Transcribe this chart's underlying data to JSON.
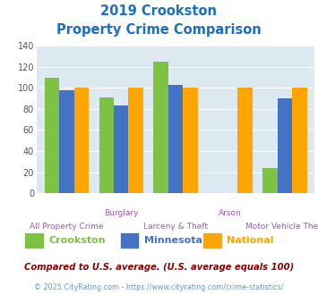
{
  "title_line1": "2019 Crookston",
  "title_line2": "Property Crime Comparison",
  "top_labels": [
    "",
    "Burglary",
    "",
    "Arson",
    ""
  ],
  "bottom_labels": [
    "All Property Crime",
    "",
    "Larceny & Theft",
    "",
    "Motor Vehicle Theft"
  ],
  "crookston": [
    110,
    91,
    125,
    0,
    24
  ],
  "minnesota": [
    98,
    83,
    103,
    0,
    90
  ],
  "national": [
    100,
    100,
    100,
    100,
    100
  ],
  "bar_color_crookston": "#7dc242",
  "bar_color_minnesota": "#4472c4",
  "bar_color_national": "#ffa500",
  "ylim": [
    0,
    140
  ],
  "yticks": [
    0,
    20,
    40,
    60,
    80,
    100,
    120,
    140
  ],
  "footnote1": "Compared to U.S. average. (U.S. average equals 100)",
  "footnote2": "© 2025 CityRating.com - https://www.cityrating.com/crime-statistics/",
  "title_color": "#1b6ec2",
  "footnote1_color": "#8b0000",
  "footnote2_color": "#5b9bd5",
  "cat_label_color": "#9b59b6",
  "bg_color": "#dce9f0"
}
